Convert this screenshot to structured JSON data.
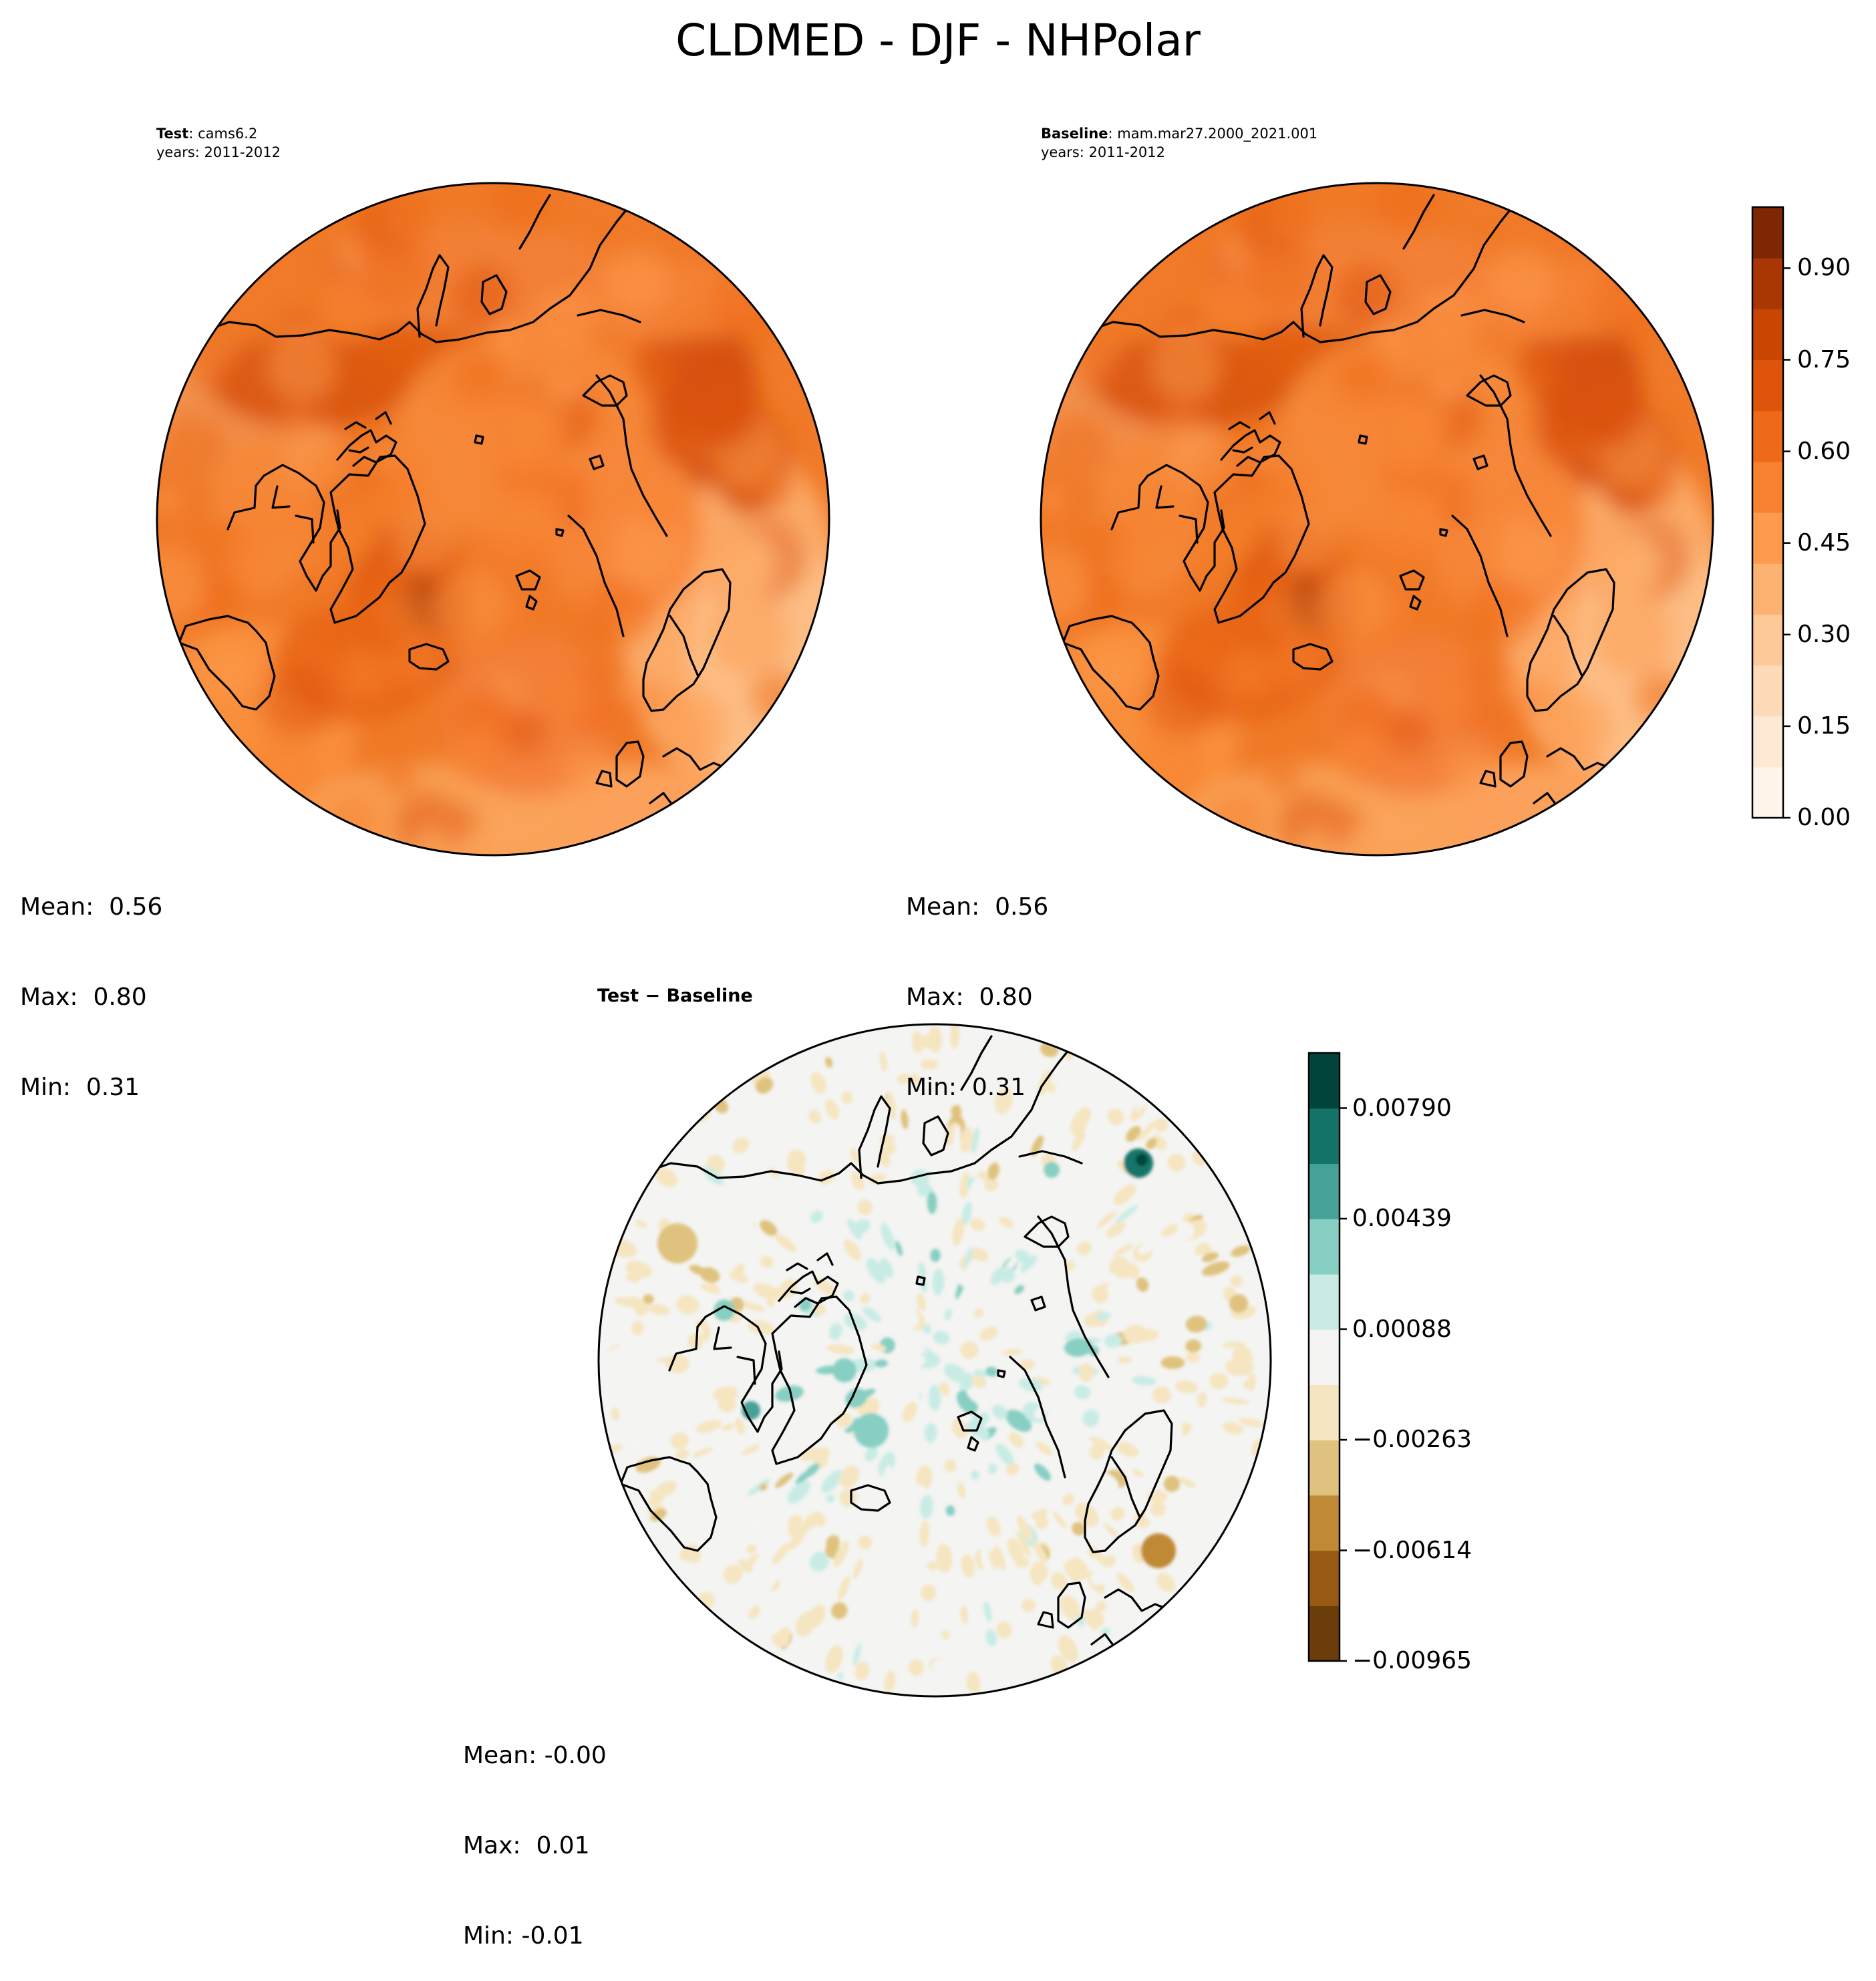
{
  "figure": {
    "title": "CLDMED - DJF - NHPolar"
  },
  "panels": {
    "test": {
      "label_bold": "Test",
      "label_sep": ": ",
      "label_value": "cams6.2",
      "years": "years: 2011-2012",
      "stats": {
        "mean": "Mean:  0.56",
        "max": "Max:  0.80",
        "min": "Min:  0.31"
      }
    },
    "baseline": {
      "label_bold": "Baseline",
      "label_sep": ": ",
      "label_value": "mam.mar27.2000_2021.001",
      "years": "years: 2011-2012",
      "stats": {
        "mean": "Mean:  0.56",
        "max": "Max:  0.80",
        "min": "Min:  0.31"
      }
    },
    "diff": {
      "label_bold": "Test − Baseline",
      "stats": {
        "mean": "Mean: -0.00",
        "max": "Max:  0.01",
        "min": "Min: -0.01"
      }
    }
  },
  "colorbars": {
    "main": {
      "ticks": [
        "0.00",
        "0.15",
        "0.30",
        "0.45",
        "0.60",
        "0.75",
        "0.90"
      ],
      "tick_values": [
        0.0,
        0.15,
        0.3,
        0.45,
        0.6,
        0.75,
        0.9
      ],
      "range": [
        0.0,
        1.0
      ],
      "colormap": "Oranges",
      "colors": [
        "#fff5eb",
        "#fee9d4",
        "#fddbb8",
        "#fdc998",
        "#fdb272",
        "#fd9a4e",
        "#f8822f",
        "#ee6a18",
        "#df540b",
        "#c94502",
        "#a93703",
        "#7f2704"
      ]
    },
    "diff": {
      "ticks": [
        "−0.00965",
        "−0.00614",
        "−0.00263",
        "0.00088",
        "0.00439",
        "0.00790"
      ],
      "tick_values": [
        -0.00965,
        -0.00614,
        -0.00263,
        0.00088,
        0.00439,
        0.0079
      ],
      "range": [
        -0.00965,
        0.00965
      ],
      "colormap": "BrBG",
      "colors": [
        "#6b3d0a",
        "#985a12",
        "#c08935",
        "#dfc27d",
        "#f5e5c0",
        "#f4f4f2",
        "#c8ece5",
        "#87cfc2",
        "#46a198",
        "#14746a",
        "#01443b"
      ]
    }
  },
  "map": {
    "projection": "north-polar-stereographic",
    "coastlines": "black",
    "region": "NHPolar"
  }
}
